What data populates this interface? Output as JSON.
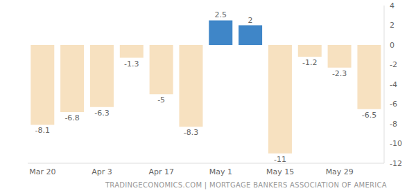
{
  "chart_data": {
    "type": "bar",
    "categories": [
      "Mar 20",
      null,
      "Apr 3",
      null,
      "Apr 17",
      null,
      "May 1",
      null,
      "May 15",
      null,
      "May 29",
      null
    ],
    "values": [
      -8.1,
      -6.8,
      -6.3,
      -1.3,
      -5,
      -8.3,
      2.5,
      2,
      -11,
      -1.2,
      -2.3,
      -6.5
    ],
    "colors": [
      "#f7e1c0",
      "#f7e1c0",
      "#f7e1c0",
      "#f7e1c0",
      "#f7e1c0",
      "#f7e1c0",
      "#3f86c8",
      "#3f86c8",
      "#f7e1c0",
      "#f7e1c0",
      "#f7e1c0",
      "#f7e1c0"
    ],
    "ylim": [
      -12,
      4
    ],
    "yticks": [
      4,
      2,
      0,
      -2,
      -4,
      -6,
      -8,
      -10,
      -12
    ],
    "grid": false,
    "data_labels": true,
    "source": "TRADINGECONOMICS.COM | MORTGAGE BANKERS ASSOCIATION OF AMERICA"
  }
}
